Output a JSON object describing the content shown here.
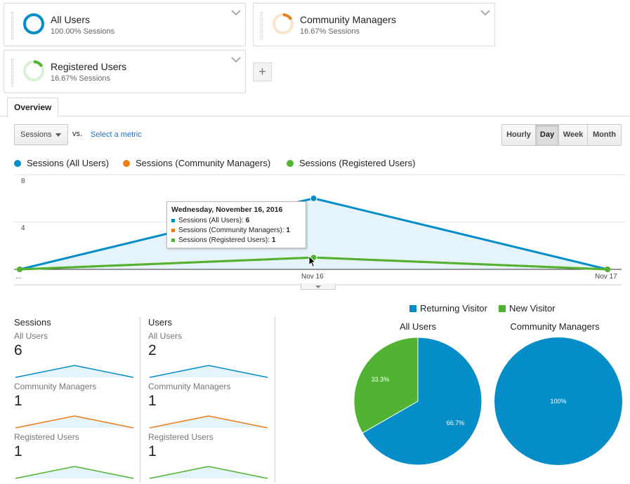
{
  "colors": {
    "all_users": "#058dc7",
    "community_managers": "#ed7e17",
    "registered_users": "#50b432",
    "returning_visitor": "#058dc7",
    "new_visitor": "#50b432"
  },
  "segments": [
    {
      "name": "All Users",
      "sessions_label": "100.00% Sessions",
      "share": 1.0
    },
    {
      "name": "Community Managers",
      "sessions_label": "16.67% Sessions",
      "share": 0.1667
    },
    {
      "name": "Registered Users",
      "sessions_label": "16.67% Sessions",
      "share": 0.1667
    }
  ],
  "add_segment_label": "+",
  "tabs": [
    {
      "label": "Overview"
    }
  ],
  "metric_selector": {
    "value": "Sessions",
    "vs": "vs.",
    "select_metric_link": "Select a metric"
  },
  "granularity": [
    {
      "label": "Hourly",
      "active": false
    },
    {
      "label": "Day",
      "active": true
    },
    {
      "label": "Week",
      "active": false
    },
    {
      "label": "Month",
      "active": false
    }
  ],
  "chart_data": {
    "type": "area",
    "legend": [
      "Sessions (All Users)",
      "Sessions (Community Managers)",
      "Sessions (Registered Users)"
    ],
    "x_labels": [
      "...",
      "Nov 16",
      "Nov 17"
    ],
    "y_ticks": [
      4,
      8
    ],
    "ylim": [
      0,
      8
    ],
    "series": [
      {
        "name": "Sessions (All Users)",
        "values": [
          0,
          6,
          0
        ]
      },
      {
        "name": "Sessions (Community Managers)",
        "values": [
          0,
          1,
          0
        ]
      },
      {
        "name": "Sessions (Registered Users)",
        "values": [
          0,
          1,
          0
        ]
      }
    ],
    "tooltip": {
      "title": "Wednesday, November 16, 2016",
      "rows": [
        {
          "label": "Sessions (All Users):",
          "value": "6"
        },
        {
          "label": "Sessions (Community Managers):",
          "value": "1"
        },
        {
          "label": "Sessions (Registered Users):",
          "value": "1"
        }
      ]
    }
  },
  "metric_summary": {
    "columns": [
      {
        "header": "Sessions",
        "rows": [
          {
            "segment": "All Users",
            "value": "6"
          },
          {
            "segment": "Community Managers",
            "value": "1"
          },
          {
            "segment": "Registered Users",
            "value": "1"
          }
        ]
      },
      {
        "header": "Users",
        "rows": [
          {
            "segment": "All Users",
            "value": "2"
          },
          {
            "segment": "Community Managers",
            "value": "1"
          },
          {
            "segment": "Registered Users",
            "value": "1"
          }
        ]
      }
    ]
  },
  "pie_legend": [
    "Returning Visitor",
    "New Visitor"
  ],
  "pie_charts": [
    {
      "title": "All Users",
      "slices": [
        {
          "name": "Returning Visitor",
          "value": 66.7,
          "label": "66.7%"
        },
        {
          "name": "New Visitor",
          "value": 33.3,
          "label": "33.3%"
        }
      ]
    },
    {
      "title": "Community Managers",
      "slices": [
        {
          "name": "Returning Visitor",
          "value": 100,
          "label": "100%"
        }
      ]
    }
  ]
}
